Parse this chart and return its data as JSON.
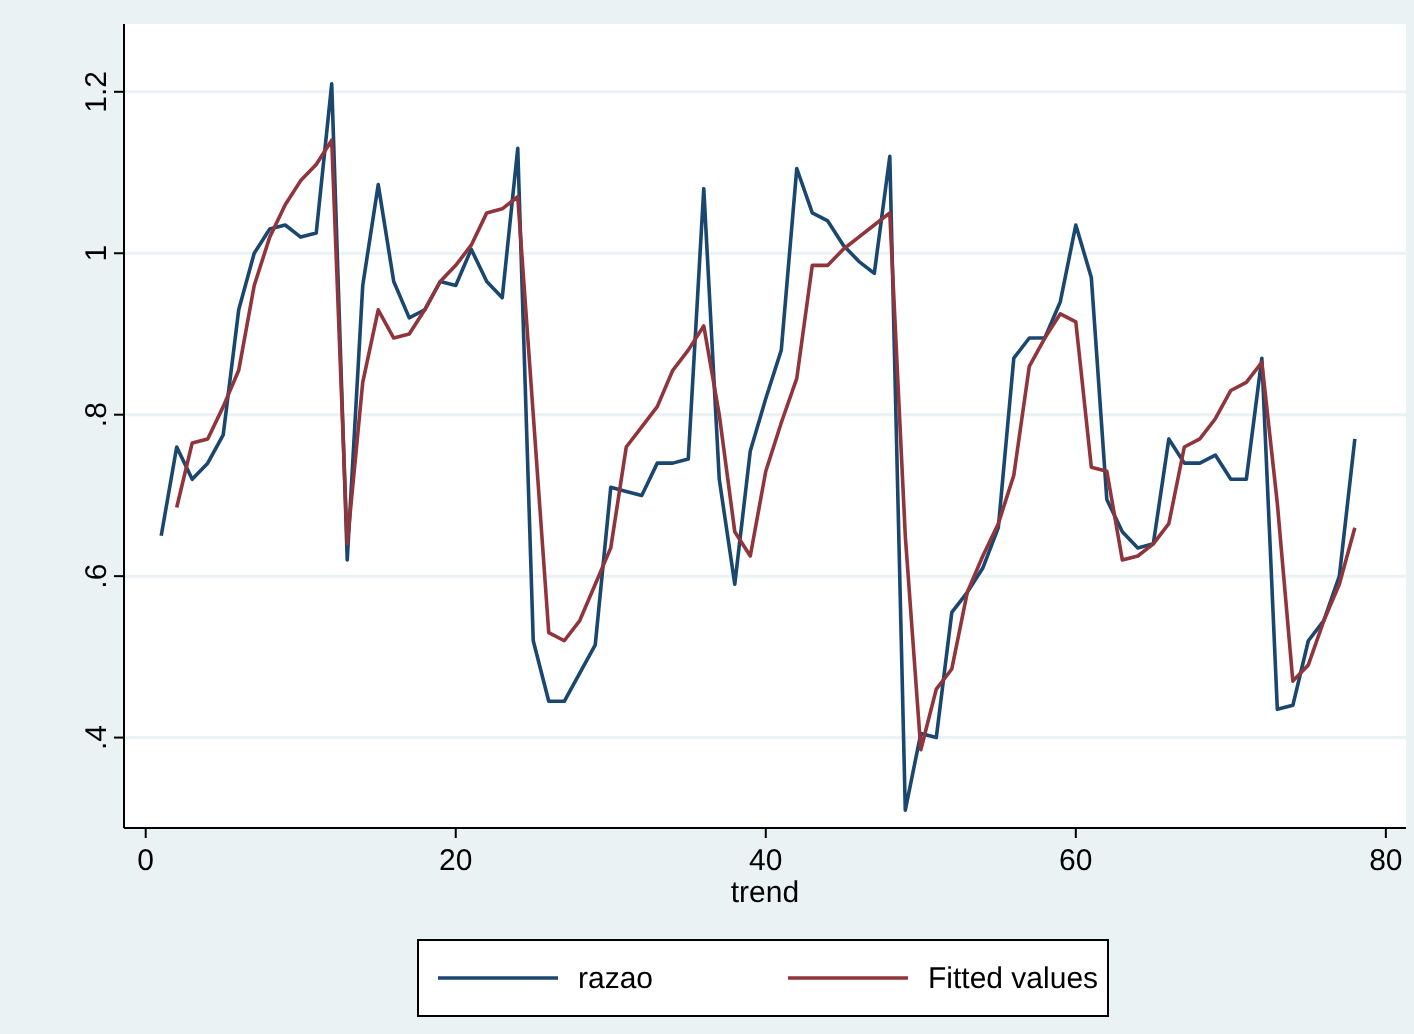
{
  "chart_data": {
    "type": "line",
    "xlabel": "trend",
    "xlim": [
      -1.4,
      81.3
    ],
    "ylim": [
      0.288,
      1.284
    ],
    "xticks": [
      0,
      20,
      40,
      60,
      80
    ],
    "yticks": [
      {
        "value": 0.4,
        "label": ".4"
      },
      {
        "value": 0.6,
        "label": ".6"
      },
      {
        "value": 0.8,
        "label": ".8"
      },
      {
        "value": 1,
        "label": "1"
      },
      {
        "value": 1.2,
        "label": "1.2"
      }
    ],
    "grid": "y",
    "legend": "bottom",
    "series": [
      {
        "name": "razao",
        "color": "#1a476f",
        "x": [
          1,
          2,
          3,
          4,
          5,
          6,
          7,
          8,
          9,
          10,
          11,
          12,
          13,
          14,
          15,
          16,
          17,
          18,
          19,
          20,
          21,
          22,
          23,
          24,
          25,
          26,
          27,
          28,
          29,
          30,
          31,
          32,
          33,
          34,
          35,
          36,
          37,
          38,
          39,
          40,
          41,
          42,
          43,
          44,
          45,
          46,
          47,
          48,
          49,
          50,
          51,
          52,
          53,
          54,
          55,
          56,
          57,
          58,
          59,
          60,
          61,
          62,
          63,
          64,
          65,
          66,
          67,
          68,
          69,
          70,
          71,
          72,
          73,
          74,
          75,
          76,
          77,
          78
        ],
        "values": [
          0.65,
          0.76,
          0.72,
          0.74,
          0.775,
          0.93,
          1.0,
          1.03,
          1.035,
          1.02,
          1.025,
          1.21,
          0.62,
          0.96,
          1.085,
          0.965,
          0.92,
          0.93,
          0.965,
          0.96,
          1.005,
          0.965,
          0.945,
          1.13,
          0.52,
          0.445,
          0.445,
          0.48,
          0.515,
          0.71,
          0.705,
          0.7,
          0.74,
          0.74,
          0.745,
          1.08,
          0.72,
          0.59,
          0.755,
          0.82,
          0.88,
          1.105,
          1.05,
          1.04,
          1.01,
          0.99,
          0.975,
          1.12,
          0.31,
          0.405,
          0.4,
          0.555,
          0.58,
          0.61,
          0.66,
          0.87,
          0.895,
          0.895,
          0.94,
          1.035,
          0.97,
          0.695,
          0.655,
          0.635,
          0.64,
          0.77,
          0.74,
          0.74,
          0.75,
          0.72,
          0.72,
          0.87,
          0.435,
          0.44,
          0.52,
          0.545,
          0.6,
          0.77
        ]
      },
      {
        "name": "Fitted values",
        "color": "#90353b",
        "x": [
          2,
          3,
          4,
          5,
          6,
          7,
          8,
          9,
          10,
          11,
          12,
          13,
          14,
          15,
          16,
          17,
          18,
          19,
          20,
          21,
          22,
          23,
          24,
          25,
          26,
          27,
          28,
          29,
          30,
          31,
          32,
          33,
          34,
          35,
          36,
          37,
          38,
          39,
          40,
          41,
          42,
          43,
          44,
          45,
          46,
          47,
          48,
          49,
          50,
          51,
          52,
          53,
          54,
          55,
          56,
          57,
          58,
          59,
          60,
          61,
          62,
          63,
          64,
          65,
          66,
          67,
          68,
          69,
          70,
          71,
          72,
          73,
          74,
          75,
          76,
          77,
          78
        ],
        "values": [
          0.685,
          0.765,
          0.77,
          0.81,
          0.855,
          0.96,
          1.02,
          1.06,
          1.09,
          1.11,
          1.14,
          0.64,
          0.84,
          0.93,
          0.895,
          0.9,
          0.93,
          0.965,
          0.985,
          1.01,
          1.05,
          1.055,
          1.07,
          0.8,
          0.53,
          0.52,
          0.545,
          0.59,
          0.635,
          0.76,
          0.785,
          0.81,
          0.855,
          0.88,
          0.91,
          0.8,
          0.655,
          0.625,
          0.73,
          0.79,
          0.845,
          0.985,
          0.985,
          1.005,
          1.02,
          1.035,
          1.05,
          0.65,
          0.385,
          0.46,
          0.485,
          0.58,
          0.625,
          0.665,
          0.725,
          0.86,
          0.895,
          0.925,
          0.915,
          0.735,
          0.73,
          0.62,
          0.625,
          0.64,
          0.665,
          0.76,
          0.77,
          0.795,
          0.83,
          0.84,
          0.865,
          0.69,
          0.47,
          0.49,
          0.545,
          0.59,
          0.66
        ]
      }
    ]
  }
}
